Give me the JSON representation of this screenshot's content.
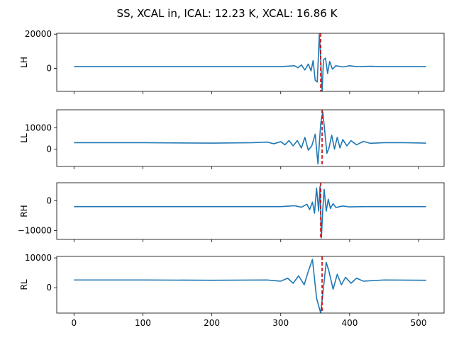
{
  "figure_title": "SS, XCAL in, ICAL: 12.23 K, XCAL: 16.86 K",
  "colors": {
    "series": "#1f77b4",
    "marker": "#cc0000",
    "axes": "#000000",
    "background": "#ffffff"
  },
  "chart_data": [
    {
      "type": "line",
      "ylabel": "LH",
      "xlim": [
        -25,
        537
      ],
      "ylim": [
        -13500,
        20500
      ],
      "x_ticks": [
        0,
        100,
        200,
        300,
        400,
        500
      ],
      "x_tick_labels_visible": false,
      "y_ticks": [
        0,
        20000
      ],
      "y_tick_labels": [
        "0",
        "20000"
      ],
      "marker_x": 358,
      "grid": false,
      "series": [
        {
          "x": [
            0,
            100,
            200,
            300,
            320,
            325,
            330,
            335,
            340,
            344,
            347,
            350,
            353,
            356,
            358,
            360,
            362,
            365,
            368,
            371,
            375,
            380,
            390,
            400,
            410,
            430,
            450,
            511
          ],
          "values": [
            1000,
            1000,
            1000,
            1000,
            1500,
            300,
            2000,
            -1000,
            2500,
            -1500,
            4500,
            -7000,
            -8000,
            20000,
            5000,
            -14000,
            5000,
            6000,
            -3000,
            4000,
            -500,
            1500,
            800,
            1500,
            1000,
            1200,
            1000,
            1000
          ]
        }
      ]
    },
    {
      "type": "line",
      "ylabel": "LL",
      "xlim": [
        -25,
        537
      ],
      "ylim": [
        -8200,
        18500
      ],
      "x_ticks": [
        0,
        100,
        200,
        300,
        400,
        500
      ],
      "x_tick_labels_visible": false,
      "y_ticks": [
        0,
        10000
      ],
      "y_tick_labels": [
        "0",
        "10000"
      ],
      "marker_x": 360,
      "grid": false,
      "series": [
        {
          "x": [
            0,
            100,
            200,
            260,
            280,
            290,
            300,
            306,
            312,
            318,
            324,
            330,
            335,
            340,
            345,
            350,
            354,
            358,
            361,
            364,
            367,
            370,
            374,
            378,
            382,
            386,
            390,
            396,
            402,
            410,
            420,
            430,
            450,
            480,
            511
          ],
          "values": [
            3000,
            3000,
            2800,
            3000,
            3300,
            2500,
            3500,
            2000,
            4000,
            1500,
            4000,
            500,
            5500,
            -500,
            1500,
            7000,
            -7000,
            12000,
            17500,
            8000,
            -2000,
            500,
            6500,
            0,
            5500,
            500,
            4500,
            1500,
            4000,
            2000,
            3600,
            2700,
            3000,
            3000,
            2800
          ]
        }
      ]
    },
    {
      "type": "line",
      "ylabel": "RH",
      "xlim": [
        -25,
        537
      ],
      "ylim": [
        -13000,
        6000
      ],
      "x_ticks": [
        0,
        100,
        200,
        300,
        400,
        500
      ],
      "x_tick_labels_visible": false,
      "y_ticks": [
        -10000,
        0
      ],
      "y_tick_labels": [
        "−10000",
        "0"
      ],
      "marker_x": 358,
      "grid": false,
      "series": [
        {
          "x": [
            0,
            100,
            200,
            300,
            320,
            330,
            338,
            342,
            346,
            349,
            352,
            355,
            357,
            359,
            361,
            363,
            366,
            369,
            372,
            376,
            380,
            390,
            400,
            420,
            450,
            511
          ],
          "values": [
            -2000,
            -2000,
            -2000,
            -2000,
            -1700,
            -2200,
            -1200,
            -3000,
            -500,
            -4200,
            4200,
            -3500,
            4800,
            -12500,
            -3000,
            3800,
            -3500,
            500,
            -2600,
            -1000,
            -2300,
            -1800,
            -2100,
            -2000,
            -2000,
            -2000
          ]
        }
      ]
    },
    {
      "type": "line",
      "ylabel": "RL",
      "xlim": [
        -25,
        537
      ],
      "ylim": [
        -8500,
        10500
      ],
      "x_ticks": [
        0,
        100,
        200,
        300,
        400,
        500
      ],
      "x_tick_labels": [
        "0",
        "100",
        "200",
        "300",
        "400",
        "500"
      ],
      "y_ticks": [
        0,
        10000
      ],
      "y_tick_labels": [
        "0",
        "10000"
      ],
      "marker_x": 360,
      "grid": false,
      "series": [
        {
          "x": [
            0,
            100,
            200,
            280,
            300,
            310,
            318,
            326,
            334,
            340,
            346,
            352,
            358,
            362,
            366,
            370,
            376,
            382,
            388,
            394,
            402,
            410,
            420,
            450,
            511
          ],
          "values": [
            2600,
            2600,
            2500,
            2600,
            2200,
            3200,
            1500,
            4000,
            1000,
            5500,
            9500,
            -3500,
            -8500,
            0,
            8500,
            5500,
            -500,
            4500,
            1000,
            3500,
            1500,
            3200,
            2200,
            2600,
            2500
          ]
        }
      ]
    }
  ]
}
